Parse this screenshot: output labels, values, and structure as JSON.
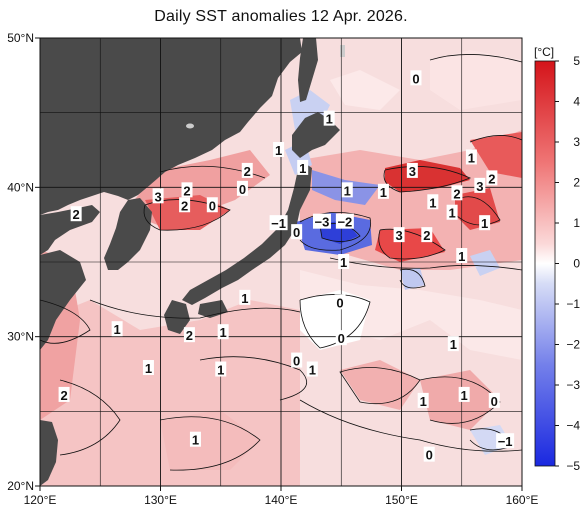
{
  "title": "Daily SST anomalies 12 Apr. 2026.",
  "map": {
    "lon_range": [
      120,
      160
    ],
    "lat_range": [
      20,
      50
    ],
    "x_ticks": [
      {
        "value": 120,
        "label": "120°E"
      },
      {
        "value": 130,
        "label": "130°E"
      },
      {
        "value": 140,
        "label": "140°E"
      },
      {
        "value": 150,
        "label": "150°E"
      },
      {
        "value": 160,
        "label": "160°E"
      }
    ],
    "y_ticks": [
      {
        "value": 50,
        "label": "50°N"
      },
      {
        "value": 40,
        "label": "40°N"
      },
      {
        "value": 30,
        "label": "30°N"
      },
      {
        "value": 20,
        "label": "20°N"
      }
    ],
    "grid": true,
    "land_color": "#4a4a4a",
    "ocean_base_color": "#f7dede"
  },
  "contour_labels": [
    {
      "text": "0",
      "lon": 151.2,
      "lat": 47.3
    },
    {
      "text": "1",
      "lon": 144.0,
      "lat": 44.6
    },
    {
      "text": "1",
      "lon": 139.8,
      "lat": 42.5
    },
    {
      "text": "2",
      "lon": 137.2,
      "lat": 41.1
    },
    {
      "text": "0",
      "lon": 136.8,
      "lat": 39.9
    },
    {
      "text": "2",
      "lon": 132.2,
      "lat": 39.8
    },
    {
      "text": "0",
      "lon": 134.3,
      "lat": 38.8
    },
    {
      "text": "3",
      "lon": 129.8,
      "lat": 39.4
    },
    {
      "text": "2",
      "lon": 132.0,
      "lat": 38.8
    },
    {
      "text": "2",
      "lon": 123.0,
      "lat": 38.2
    },
    {
      "text": "1",
      "lon": 141.8,
      "lat": 41.3
    },
    {
      "text": "1",
      "lon": 145.5,
      "lat": 39.8
    },
    {
      "text": "1",
      "lon": 148.5,
      "lat": 39.7
    },
    {
      "text": "3",
      "lon": 150.9,
      "lat": 41.1
    },
    {
      "text": "1",
      "lon": 155.8,
      "lat": 42.0
    },
    {
      "text": "2",
      "lon": 157.5,
      "lat": 40.6
    },
    {
      "text": "3",
      "lon": 156.5,
      "lat": 40.1
    },
    {
      "text": "2",
      "lon": 154.6,
      "lat": 39.6
    },
    {
      "text": "1",
      "lon": 152.6,
      "lat": 39.0
    },
    {
      "text": "1",
      "lon": 154.2,
      "lat": 38.3
    },
    {
      "text": "1",
      "lon": 156.9,
      "lat": 37.6
    },
    {
      "text": "−1",
      "lon": 139.8,
      "lat": 37.6
    },
    {
      "text": "−3",
      "lon": 143.4,
      "lat": 37.7
    },
    {
      "text": "−2",
      "lon": 145.3,
      "lat": 37.7
    },
    {
      "text": "0",
      "lon": 141.3,
      "lat": 37.0
    },
    {
      "text": "3",
      "lon": 149.8,
      "lat": 36.8
    },
    {
      "text": "2",
      "lon": 152.1,
      "lat": 36.8
    },
    {
      "text": "1",
      "lon": 155.0,
      "lat": 35.4
    },
    {
      "text": "1",
      "lon": 145.2,
      "lat": 35.0
    },
    {
      "text": "1",
      "lon": 137.0,
      "lat": 32.6
    },
    {
      "text": "0",
      "lon": 144.9,
      "lat": 32.3
    },
    {
      "text": "1",
      "lon": 126.4,
      "lat": 30.5
    },
    {
      "text": "2",
      "lon": 132.4,
      "lat": 30.1
    },
    {
      "text": "1",
      "lon": 135.2,
      "lat": 30.3
    },
    {
      "text": "0",
      "lon": 145.0,
      "lat": 29.9
    },
    {
      "text": "1",
      "lon": 154.3,
      "lat": 29.5
    },
    {
      "text": "1",
      "lon": 129.0,
      "lat": 27.9
    },
    {
      "text": "1",
      "lon": 135.0,
      "lat": 27.8
    },
    {
      "text": "0",
      "lon": 141.3,
      "lat": 28.4
    },
    {
      "text": "1",
      "lon": 142.6,
      "lat": 27.8
    },
    {
      "text": "1",
      "lon": 155.2,
      "lat": 26.1
    },
    {
      "text": "2",
      "lon": 122.0,
      "lat": 26.1
    },
    {
      "text": "1",
      "lon": 151.8,
      "lat": 25.7
    },
    {
      "text": "0",
      "lon": 157.7,
      "lat": 25.7
    },
    {
      "text": "1",
      "lon": 132.9,
      "lat": 23.1
    },
    {
      "text": "−1",
      "lon": 158.6,
      "lat": 23.0
    },
    {
      "text": "0",
      "lon": 152.3,
      "lat": 22.1
    }
  ],
  "colorbar": {
    "unit": "[°C]",
    "min": -5,
    "max": 5,
    "ticks": [
      {
        "value": 5,
        "label": "5"
      },
      {
        "value": 4,
        "label": "4"
      },
      {
        "value": 3,
        "label": "3"
      },
      {
        "value": 2,
        "label": "2"
      },
      {
        "value": 1,
        "label": "1"
      },
      {
        "value": 0,
        "label": "0"
      },
      {
        "value": -1,
        "label": "−1"
      },
      {
        "value": -2,
        "label": "−2"
      },
      {
        "value": -3,
        "label": "−3"
      },
      {
        "value": -4,
        "label": "−4"
      },
      {
        "value": -5,
        "label": "−5"
      }
    ],
    "warm_color": "#e8262a",
    "cold_color": "#1c2ee0"
  }
}
